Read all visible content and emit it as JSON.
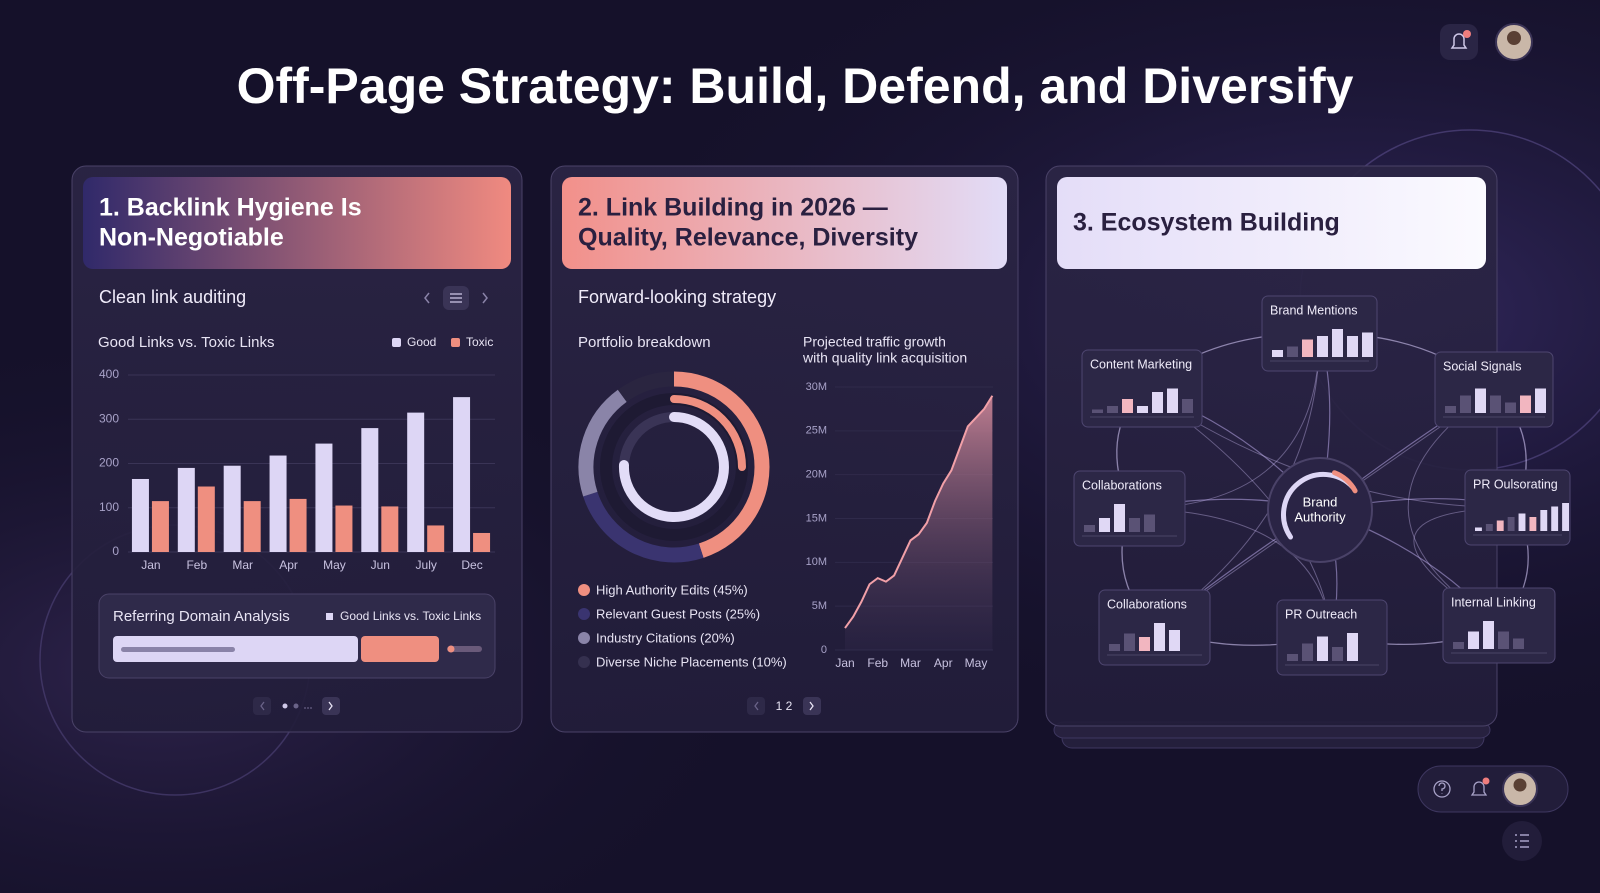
{
  "title": "Off-Page Strategy: Build, Defend, and Diversify",
  "panels": [
    {
      "heading": [
        "1. Backlink Hygiene Is",
        "Non-Negotiable"
      ],
      "subheading": "Clean link auditing"
    },
    {
      "heading": [
        "2. Link Building in 2026 —",
        "Quality, Relevance, Diversity"
      ],
      "subheading": "Forward-looking strategy"
    },
    {
      "heading": [
        "3. Ecosystem Building"
      ]
    }
  ],
  "referral": {
    "title": "Referring Domain Analysis",
    "legend": "Good Links vs. Toxic Links"
  },
  "pager": "1 2",
  "chart_data": [
    {
      "type": "bar",
      "title": "Good Links vs. Toxic Links",
      "categories": [
        "Jan",
        "Feb",
        "Mar",
        "Apr",
        "May",
        "Jun",
        "July",
        "Dec"
      ],
      "series": [
        {
          "name": "Good",
          "color": "#ddd6f5",
          "values": [
            165,
            190,
            195,
            218,
            245,
            280,
            315,
            350
          ]
        },
        {
          "name": "Toxic",
          "color": "#ef8f80",
          "values": [
            115,
            148,
            115,
            120,
            105,
            103,
            60,
            43
          ]
        }
      ],
      "ylim": [
        0,
        400
      ],
      "yticks": [
        0,
        100,
        200,
        300,
        400
      ],
      "grid": true
    },
    {
      "type": "donut",
      "title": "Portfolio breakdown",
      "categories": [
        "High Authority Edits (45%)",
        "Relevant Guest Posts (25%)",
        "Industry Citations (20%)",
        "Diverse Niche Placements (10%)"
      ],
      "values": [
        45,
        25,
        20,
        10
      ],
      "colors": [
        "#ef8f80",
        "#3a3470",
        "#8a84a8",
        "#2a2540"
      ]
    },
    {
      "type": "area",
      "title": [
        "Projected traffic growth",
        "with quality link acquisition"
      ],
      "categories": [
        "Jan",
        null,
        null,
        null,
        "Feb",
        null,
        null,
        null,
        "Mar",
        null,
        null,
        null,
        "Apr",
        null,
        null,
        null,
        "May",
        null,
        null
      ],
      "values": [
        2.5,
        3.8,
        5.5,
        7.5,
        8.2,
        7.8,
        8.5,
        10.5,
        12.5,
        13.2,
        14.5,
        17,
        19,
        20.5,
        23,
        25.5,
        26.5,
        27.5,
        29
      ],
      "color": "#f2a0a8",
      "ylim": [
        0,
        30
      ],
      "yticks": [
        0,
        {
          "value": 5,
          "label": "5M"
        },
        {
          "value": 10,
          "label": "10M"
        },
        {
          "value": 15,
          "label": "15M"
        },
        {
          "value": 20,
          "label": "20M"
        },
        {
          "value": 25,
          "label": "25M"
        },
        {
          "value": 30,
          "label": "30M"
        }
      ]
    }
  ],
  "ecosystem": {
    "center": [
      "Brand",
      "Authority"
    ],
    "nodes": [
      {
        "label": "Brand Mentions",
        "bars": [
          2,
          3,
          5,
          6,
          8,
          6,
          7
        ]
      },
      {
        "label": "Content Marketing",
        "bars": [
          1,
          2,
          4,
          2,
          6,
          7,
          4
        ]
      },
      {
        "label": "Social Signals",
        "bars": [
          2,
          5,
          7,
          5,
          3,
          5,
          7
        ]
      },
      {
        "label": "Collaborations",
        "bars": [
          2,
          4,
          8,
          4,
          5
        ]
      },
      {
        "label": "PR Oulsorating",
        "bars": [
          1,
          2,
          3,
          4,
          5,
          4,
          6,
          7,
          8
        ]
      },
      {
        "label": "Collaborations",
        "bars": [
          2,
          5,
          4,
          8,
          6
        ]
      },
      {
        "label": "PR Outreach",
        "bars": [
          2,
          5,
          7,
          4,
          8
        ]
      },
      {
        "label": "Internal Linking",
        "bars": [
          2,
          5,
          8,
          5,
          3
        ]
      }
    ]
  }
}
